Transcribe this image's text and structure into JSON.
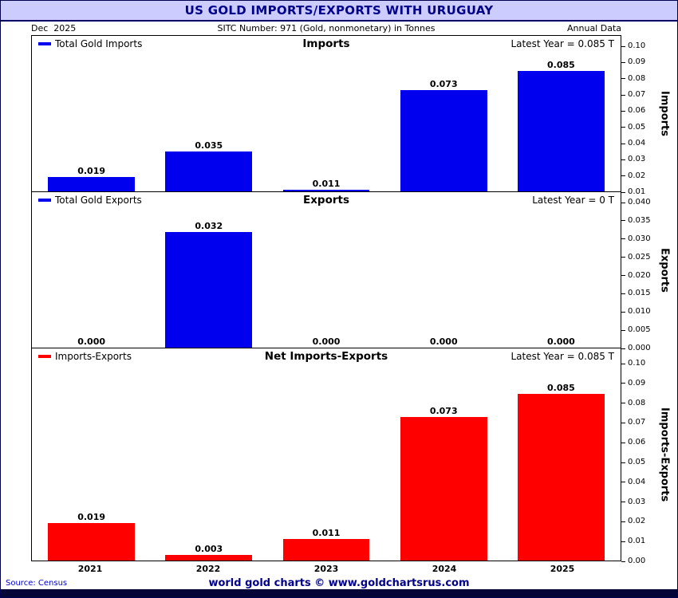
{
  "title_bar": {
    "text": "US GOLD IMPORTS/EXPORTS WITH URUGUAY"
  },
  "header": {
    "left": "Dec  2025",
    "center": "SITC Number: 971 (Gold, nonmonetary) in Tonnes",
    "right": "Annual Data"
  },
  "footer": {
    "source": "Source: Census",
    "center": "world gold charts © www.goldchartsrus.com"
  },
  "colors": {
    "title_bg": "#CCCCFF",
    "title_text": "#00008B",
    "source_text": "#0000CC",
    "credit_text": "#00008B",
    "bottom_bar": "#050538",
    "imports_bar": "#0000EE",
    "exports_bar": "#0000EE",
    "net_bar": "#FF0000"
  },
  "x_categories": [
    "2021",
    "2022",
    "2023",
    "2024",
    "2025"
  ],
  "chart_data": [
    {
      "type": "bar",
      "panel": "imports",
      "title": "Imports",
      "legend": "Total Gold Imports",
      "latest_label": "Latest Year = 0.085 T",
      "ylabel": "Imports",
      "bar_color": "#0000EE",
      "categories": [
        "2021",
        "2022",
        "2023",
        "2024",
        "2025"
      ],
      "values": [
        0.019,
        0.035,
        0.011,
        0.073,
        0.085
      ],
      "bar_labels": [
        "0.019",
        "0.035",
        "0.011",
        "0.073",
        "0.085"
      ],
      "ylim": [
        0.01,
        0.1
      ],
      "yticks": [
        "0.10",
        "0.09",
        "0.08",
        "0.07",
        "0.06",
        "0.05",
        "0.04",
        "0.03",
        "0.02",
        "0.01"
      ],
      "grid": false,
      "legend_position": "top-left",
      "y_axis_side": "right"
    },
    {
      "type": "bar",
      "panel": "exports",
      "title": "Exports",
      "legend": "Total Gold Exports",
      "latest_label": "Latest Year = 0 T",
      "ylabel": "Exports",
      "bar_color": "#0000EE",
      "categories": [
        "2021",
        "2022",
        "2023",
        "2024",
        "2025"
      ],
      "values": [
        0.0,
        0.032,
        0.0,
        0.0,
        0.0
      ],
      "bar_labels": [
        "0.000",
        "0.032",
        "0.000",
        "0.000",
        "0.000"
      ],
      "ylim": [
        0.0,
        0.04
      ],
      "yticks": [
        "0.040",
        "0.035",
        "0.030",
        "0.025",
        "0.020",
        "0.015",
        "0.010",
        "0.005",
        "0.000"
      ],
      "grid": false,
      "legend_position": "top-left",
      "y_axis_side": "right"
    },
    {
      "type": "bar",
      "panel": "net-imports-exports",
      "title": "Net Imports-Exports",
      "legend": "Imports-Exports",
      "latest_label": "Latest Year = 0.085 T",
      "ylabel": "Imports-Exports",
      "bar_color": "#FF0000",
      "categories": [
        "2021",
        "2022",
        "2023",
        "2024",
        "2025"
      ],
      "values": [
        0.019,
        0.003,
        0.011,
        0.073,
        0.085
      ],
      "bar_labels": [
        "0.019",
        "0.003",
        "0.011",
        "0.073",
        "0.085"
      ],
      "ylim": [
        0.0,
        0.1
      ],
      "yticks": [
        "0.10",
        "0.09",
        "0.08",
        "0.07",
        "0.06",
        "0.05",
        "0.04",
        "0.03",
        "0.02",
        "0.01",
        "0.00"
      ],
      "grid": false,
      "legend_position": "top-left",
      "y_axis_side": "right"
    }
  ]
}
